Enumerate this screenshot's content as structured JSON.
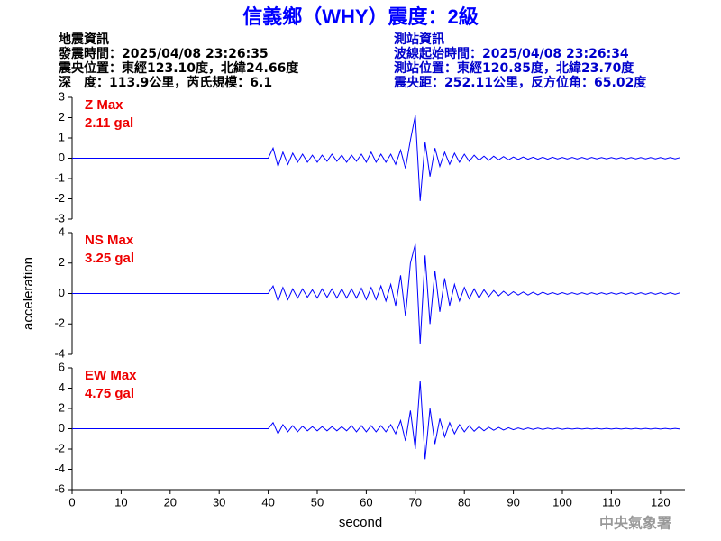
{
  "header": {
    "title": "信義鄉（WHY）震度：2級",
    "event": [
      "地震資訊",
      "發震時間：2025/04/08 23:26:35",
      "震央位置：東經123.10度，北緯24.66度",
      "深　度：113.9公里，芮氏規模：6.1"
    ],
    "station": [
      "測站資訊",
      "波線起始時間：2025/04/08 23:26:34",
      "測站位置：東經120.85度，北緯23.70度",
      "震央距：252.11公里，反方位角：65.02度"
    ],
    "agency": "中央氣象署"
  },
  "chart_data": [
    {
      "type": "line",
      "annotations": [
        "Z Max",
        "2.11 gal"
      ],
      "color": "#0000ff",
      "x": [
        0,
        40,
        41,
        42,
        43,
        44,
        45,
        46,
        47,
        48,
        49,
        50,
        51,
        52,
        53,
        54,
        55,
        56,
        57,
        58,
        59,
        60,
        61,
        62,
        63,
        64,
        65,
        66,
        67,
        68,
        69,
        70,
        71,
        72,
        73,
        74,
        75,
        76,
        77,
        78,
        79,
        80,
        81,
        82,
        83,
        84,
        85,
        86,
        87,
        88,
        89,
        90,
        91,
        92,
        93,
        94,
        95,
        96,
        97,
        98,
        99,
        100,
        101,
        102,
        103,
        104,
        105,
        106,
        107,
        108,
        109,
        110,
        111,
        112,
        113,
        114,
        115,
        116,
        117,
        118,
        119,
        120,
        121,
        122,
        123,
        124
      ],
      "values": [
        0,
        0,
        0.5,
        -0.4,
        0.3,
        -0.3,
        0.25,
        -0.2,
        0.2,
        -0.2,
        0.15,
        -0.2,
        0.15,
        -0.15,
        0.2,
        -0.15,
        0.15,
        -0.2,
        0.15,
        -0.15,
        0.2,
        -0.2,
        0.3,
        -0.2,
        0.2,
        -0.2,
        0.2,
        -0.3,
        0.4,
        -0.5,
        0.9,
        2.11,
        -2.1,
        0.8,
        -0.9,
        0.5,
        -0.4,
        0.3,
        -0.3,
        0.25,
        -0.2,
        0.2,
        -0.15,
        0.15,
        -0.1,
        0.1,
        -0.1,
        0.1,
        -0.08,
        0.08,
        -0.08,
        0.06,
        -0.06,
        0.06,
        -0.05,
        0.05,
        -0.05,
        0.05,
        -0.05,
        0.05,
        -0.04,
        0.04,
        -0.04,
        0.04,
        -0.04,
        0.04,
        -0.04,
        0.04,
        -0.03,
        0.03,
        -0.03,
        0.03,
        -0.03,
        0.03,
        -0.03,
        0.03,
        -0.03,
        0.03,
        -0.03,
        0.03,
        -0.03,
        0.03,
        -0.03,
        0.03,
        -0.03,
        0.03
      ],
      "xlim": [
        0,
        125
      ],
      "ylim": [
        -3,
        3
      ],
      "yticks": [
        -3,
        -2,
        -1,
        0,
        1,
        2,
        3
      ]
    },
    {
      "type": "line",
      "annotations": [
        "NS Max",
        "3.25 gal"
      ],
      "color": "#0000ff",
      "ylabel": "acceleration",
      "x": [
        0,
        40,
        41,
        42,
        43,
        44,
        45,
        46,
        47,
        48,
        49,
        50,
        51,
        52,
        53,
        54,
        55,
        56,
        57,
        58,
        59,
        60,
        61,
        62,
        63,
        64,
        65,
        66,
        67,
        68,
        69,
        70,
        71,
        72,
        73,
        74,
        75,
        76,
        77,
        78,
        79,
        80,
        81,
        82,
        83,
        84,
        85,
        86,
        87,
        88,
        89,
        90,
        91,
        92,
        93,
        94,
        95,
        96,
        97,
        98,
        99,
        100,
        101,
        102,
        103,
        104,
        105,
        106,
        107,
        108,
        109,
        110,
        111,
        112,
        113,
        114,
        115,
        116,
        117,
        118,
        119,
        120,
        121,
        122,
        123,
        124
      ],
      "values": [
        0,
        0,
        0.5,
        -0.5,
        0.4,
        -0.4,
        0.3,
        -0.3,
        0.3,
        -0.25,
        0.25,
        -0.3,
        0.3,
        -0.25,
        0.3,
        -0.3,
        0.3,
        -0.3,
        0.3,
        -0.3,
        0.35,
        -0.4,
        0.4,
        -0.4,
        0.5,
        -0.5,
        0.6,
        -0.8,
        1.2,
        -1.5,
        2.0,
        3.25,
        -3.3,
        2.5,
        -2.0,
        1.5,
        -1.2,
        1.0,
        -0.8,
        0.6,
        -0.5,
        0.4,
        -0.35,
        0.3,
        -0.3,
        0.25,
        -0.2,
        0.2,
        -0.15,
        0.15,
        -0.12,
        0.12,
        -0.1,
        0.1,
        -0.1,
        0.08,
        -0.08,
        0.08,
        -0.06,
        0.06,
        -0.06,
        0.06,
        -0.05,
        0.05,
        -0.05,
        0.05,
        -0.05,
        0.05,
        -0.05,
        0.05,
        -0.05,
        0.05,
        -0.05,
        0.05,
        -0.05,
        0.05,
        -0.05,
        0.05,
        -0.05,
        0.05,
        -0.05,
        0.05,
        -0.05,
        0.05,
        -0.05,
        0.05
      ],
      "xlim": [
        0,
        125
      ],
      "ylim": [
        -4,
        4
      ],
      "yticks": [
        -4,
        -2,
        0,
        2,
        4
      ]
    },
    {
      "type": "line",
      "annotations": [
        "EW Max",
        "4.75 gal"
      ],
      "color": "#0000ff",
      "xlabel": "second",
      "x": [
        0,
        40,
        41,
        42,
        43,
        44,
        45,
        46,
        47,
        48,
        49,
        50,
        51,
        52,
        53,
        54,
        55,
        56,
        57,
        58,
        59,
        60,
        61,
        62,
        63,
        64,
        65,
        66,
        67,
        68,
        69,
        70,
        71,
        72,
        73,
        74,
        75,
        76,
        77,
        78,
        79,
        80,
        81,
        82,
        83,
        84,
        85,
        86,
        87,
        88,
        89,
        90,
        91,
        92,
        93,
        94,
        95,
        96,
        97,
        98,
        99,
        100,
        101,
        102,
        103,
        104,
        105,
        106,
        107,
        108,
        109,
        110,
        111,
        112,
        113,
        114,
        115,
        116,
        117,
        118,
        119,
        120,
        121,
        122,
        123,
        124
      ],
      "values": [
        0,
        0,
        0.6,
        -0.5,
        0.4,
        -0.3,
        0.3,
        -0.3,
        0.25,
        -0.2,
        0.2,
        -0.2,
        0.2,
        -0.2,
        0.2,
        -0.2,
        0.2,
        -0.2,
        0.3,
        -0.3,
        0.3,
        -0.3,
        0.3,
        -0.3,
        0.3,
        -0.3,
        0.4,
        -0.5,
        0.8,
        -1.2,
        1.8,
        -2.0,
        4.75,
        -3.0,
        2.0,
        -1.5,
        1.0,
        -0.8,
        0.6,
        -0.5,
        0.4,
        -0.3,
        0.3,
        -0.25,
        0.2,
        -0.2,
        0.15,
        -0.15,
        0.12,
        -0.12,
        0.1,
        -0.1,
        0.08,
        -0.08,
        0.08,
        -0.06,
        0.06,
        -0.06,
        0.05,
        -0.05,
        0.05,
        -0.05,
        0.04,
        -0.04,
        0.04,
        -0.04,
        0.04,
        -0.04,
        0.04,
        -0.04,
        0.04,
        -0.04,
        0.04,
        -0.04,
        0.04,
        -0.04,
        0.04,
        -0.04,
        0.04,
        -0.04,
        0.04,
        -0.04,
        0.04,
        -0.04,
        0.04,
        -0.04
      ],
      "xlim": [
        0,
        125
      ],
      "ylim": [
        -6,
        6
      ],
      "yticks": [
        -6,
        -4,
        -2,
        0,
        2,
        4,
        6
      ],
      "xticks": [
        0,
        10,
        20,
        30,
        40,
        50,
        60,
        70,
        80,
        90,
        100,
        110,
        120
      ]
    }
  ]
}
